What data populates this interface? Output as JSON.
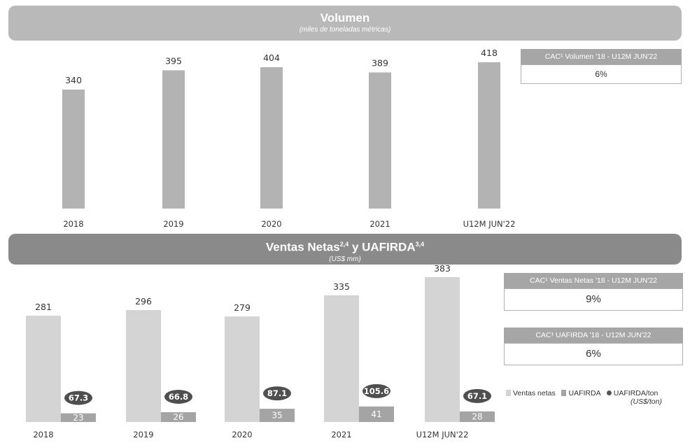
{
  "top_banner": {
    "title": "Volumen",
    "subtitle": "(miles de toneladas métricas)"
  },
  "bottom_banner": {
    "title": "Ventas Netas",
    "title_sup": "2,4",
    "title_mid": " y UAFIRDA",
    "title_sup2": "3,4",
    "subtitle": "(US$ mm)"
  },
  "cagr_volume": {
    "label": "CAC¹ Volumen '18 - U12M JUN'22",
    "value": "6%"
  },
  "cagr_sales": {
    "label": "CAC¹ Ventas Netas '18 - U12M JUN'22",
    "value": "9%"
  },
  "cagr_ebitda": {
    "label": "CAC¹ UAFIRDA '18 - U12M JUN'22",
    "value": "6%"
  },
  "legend": {
    "sales": "Ventas netas",
    "ebitda": "UAFIRDA",
    "per_ton": "UAFIRDA/ton",
    "per_ton_unit": "(US$/ton)"
  },
  "colors": {
    "volume": "#b3b3b3",
    "sales": "#d4d4d4",
    "ebitda": "#a4a4a4",
    "per_ton": "#4f4f4f",
    "banner_top": "#b9b9b9",
    "banner_bottom": "#8a8a8a"
  },
  "chart_data": [
    {
      "type": "bar",
      "title": "Volumen",
      "subtitle": "(miles de toneladas métricas)",
      "categories": [
        "2018",
        "2019",
        "2020",
        "2021",
        "U12M JUN'22"
      ],
      "series": [
        {
          "values": [
            340,
            395,
            404,
            389,
            418
          ]
        }
      ],
      "ylim": [
        0,
        430
      ],
      "grid": false
    },
    {
      "type": "bar",
      "title": "Ventas Netas y UAFIRDA",
      "subtitle": "(US$ mm)",
      "categories": [
        "2018",
        "2019",
        "2020",
        "2021",
        "U12M JUN'22"
      ],
      "series": [
        {
          "name": "Ventas netas",
          "values": [
            281,
            296,
            279,
            335,
            383
          ]
        },
        {
          "name": "UAFIRDA",
          "values": [
            23,
            26,
            35,
            41,
            28
          ]
        },
        {
          "name": "UAFIRDA/ton",
          "values": [
            67.3,
            66.8,
            87.1,
            105.6,
            67.1
          ]
        }
      ],
      "ylim": [
        0,
        390
      ],
      "grid": false,
      "legend": "right"
    }
  ]
}
